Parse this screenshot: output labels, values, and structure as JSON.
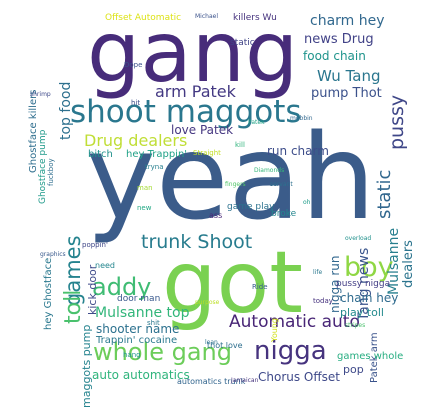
{
  "words": [
    {
      "text": "yeah",
      "color": "#3b5c8a"
    },
    {
      "text": "gang",
      "color": "#472c7a"
    },
    {
      "text": "got",
      "color": "#7ad151"
    },
    {
      "text": "shoot maggots",
      "color": "#2a778e"
    },
    {
      "text": "whole gang",
      "color": "#6ccd5a"
    },
    {
      "text": "nigga",
      "color": "#46337e"
    },
    {
      "text": "boy",
      "color": "#8fd744"
    },
    {
      "text": "trunk Shoot",
      "color": "#287c8e"
    },
    {
      "text": "addy",
      "color": "#3fbc73"
    },
    {
      "text": "Automatic auto",
      "color": "#482576"
    },
    {
      "text": "Drug dealers",
      "color": "#c0de36"
    },
    {
      "text": "arm Patek",
      "color": "#443983"
    },
    {
      "text": "games",
      "color": "#25838e"
    },
    {
      "text": "toll",
      "color": "#4ac16d"
    },
    {
      "text": "pussy",
      "color": "#3f4788"
    },
    {
      "text": "static",
      "color": "#31678e"
    },
    {
      "text": "Wu Tang",
      "color": "#2a768e"
    },
    {
      "text": "Mulsanne top",
      "color": "#32b67a"
    },
    {
      "text": "charm hey",
      "color": "#31688e"
    },
    {
      "text": "news Drug",
      "color": "#414287"
    },
    {
      "text": "food chain",
      "color": "#1f948c"
    },
    {
      "text": "pump Thot",
      "color": "#3b518b"
    },
    {
      "text": "love Patek",
      "color": "#453781"
    },
    {
      "text": "run charm",
      "color": "#3d4d8a"
    },
    {
      "text": "shooter name",
      "color": "#2c718e"
    },
    {
      "text": "Chorus Offset",
      "color": "#3e4989"
    },
    {
      "text": "auto automatics",
      "color": "#2fb47c"
    },
    {
      "text": "chain hey",
      "color": "#2f6b8e"
    },
    {
      "text": "play toll",
      "color": "#238a8d"
    },
    {
      "text": "Tang news",
      "color": "#3a548c"
    },
    {
      "text": "Mulsanne",
      "color": "#277f8e"
    },
    {
      "text": "dealers",
      "color": "#2b748e"
    },
    {
      "text": "nigga run",
      "color": "#31678e"
    },
    {
      "text": "hey Trappin'",
      "color": "#1fa187"
    },
    {
      "text": "games whole",
      "color": "#27ad81"
    },
    {
      "text": "pop",
      "color": "#3e4989"
    },
    {
      "text": "top food",
      "color": "#2d708e"
    },
    {
      "text": "maggots pump",
      "color": "#25838e"
    },
    {
      "text": "kick door",
      "color": "#3e4a89"
    },
    {
      "text": "Trappin' cocaine",
      "color": "#2a788e"
    },
    {
      "text": "Patek arm",
      "color": "#3a538b"
    },
    {
      "text": "pussy nigga",
      "color": "#433e85"
    },
    {
      "text": "game play",
      "color": "#2c728e"
    },
    {
      "text": "broke",
      "color": "#24868e"
    },
    {
      "text": "killers Wu",
      "color": "#46337e"
    },
    {
      "text": "Offset Automatic",
      "color": "#dde318"
    },
    {
      "text": "static",
      "color": "#404387"
    },
    {
      "text": "bitch",
      "color": "#21918c"
    },
    {
      "text": "door man",
      "color": "#38588c"
    },
    {
      "text": "Ghostface killers",
      "color": "#2e6e8e"
    },
    {
      "text": "Ghostface pump",
      "color": "#1f9a8a"
    },
    {
      "text": "hey Ghostface",
      "color": "#2a788e"
    },
    {
      "text": "automatics trunk",
      "color": "#32658e"
    },
    {
      "text": "thot love",
      "color": "#2e6f8e"
    },
    {
      "text": "Straight",
      "color": "#c2df23"
    },
    {
      "text": "need",
      "color": "#24868e"
    },
    {
      "text": "today",
      "color": "#46327e"
    },
    {
      "text": "Young",
      "color": "#d2e21b"
    },
    {
      "text": "Ride",
      "color": "#365c8d"
    },
    {
      "text": "hang",
      "color": "#1f968b"
    },
    {
      "text": "lean",
      "color": "#2c738e"
    },
    {
      "text": "hit",
      "color": "#3d4e8a"
    },
    {
      "text": "shit",
      "color": "#2a788e"
    },
    {
      "text": "man",
      "color": "#a5db36"
    },
    {
      "text": "ass",
      "color": "#482878"
    },
    {
      "text": "Dope",
      "color": "#3b528b"
    },
    {
      "text": "kill",
      "color": "#2fb47c"
    },
    {
      "text": "new",
      "color": "#22a884"
    },
    {
      "text": "mobbin",
      "color": "#31688e"
    },
    {
      "text": "Diamonds",
      "color": "#35b779"
    },
    {
      "text": "fingers",
      "color": "#52c569"
    },
    {
      "text": "servant",
      "color": "#2d708e"
    },
    {
      "text": "tryna",
      "color": "#277f8e"
    },
    {
      "text": "Patek",
      "color": "#20a386"
    },
    {
      "text": "Michael",
      "color": "#3b528b"
    },
    {
      "text": "oh",
      "color": "#1e9c89"
    },
    {
      "text": "graphics",
      "color": "#38598c"
    },
    {
      "text": "Jamaican",
      "color": "#46337e"
    },
    {
      "text": "overload",
      "color": "#21918c"
    },
    {
      "text": "stripes",
      "color": "#4ac16d"
    },
    {
      "text": "life",
      "color": "#2a788e"
    },
    {
      "text": "purpose",
      "color": "#bddf26"
    },
    {
      "text": "poppin'",
      "color": "#3f4788"
    },
    {
      "text": "shrimp",
      "color": "#3e4989"
    },
    {
      "text": "fuckboy",
      "color": "#2e6e8e"
    }
  ]
}
